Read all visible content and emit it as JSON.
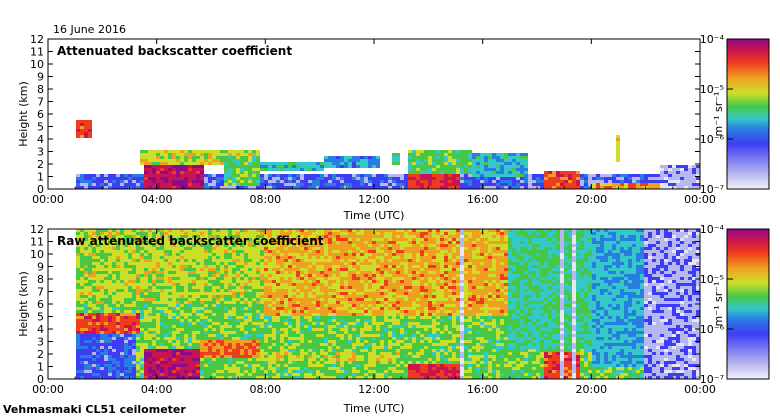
{
  "date_label": "16 June 2016",
  "footer": "Vehmasmaki CL51 ceilometer",
  "colors": {
    "scale": [
      "#e6e6f5",
      "#b8b8f0",
      "#3d3df5",
      "#2a7de0",
      "#35c8c8",
      "#46c846",
      "#cdde2a",
      "#f0a020",
      "#f03c1e",
      "#c81450",
      "#8c0a8c"
    ],
    "background": "#ffffff"
  },
  "chart_data": [
    {
      "type": "heatmap",
      "title": "Attenuated backscatter coefficient",
      "xlabel": "Time (UTC)",
      "ylabel": "Height (km)",
      "x_ticks": [
        "00:00",
        "04:00",
        "08:00",
        "12:00",
        "16:00",
        "20:00",
        "00:00"
      ],
      "y_ticks": [
        "0",
        "1",
        "2",
        "3",
        "4",
        "5",
        "6",
        "7",
        "8",
        "9",
        "10",
        "11",
        "12"
      ],
      "xlim": [
        0,
        24
      ],
      "ylim": [
        0,
        12
      ],
      "colorbar": {
        "unit": "m⁻¹ sr⁻¹",
        "ticks": [
          "10⁻⁷",
          "10⁻⁶",
          "10⁻⁵",
          "10⁻⁴"
        ],
        "log_scale": true
      },
      "data_start_hour": 1.0,
      "features": [
        {
          "t0": 1.0,
          "t1": 24.0,
          "h0": 0.0,
          "h1": 1.2,
          "level": 2.0
        },
        {
          "t0": 1.05,
          "t1": 1.6,
          "h0": 4.0,
          "h1": 5.5,
          "level": 8.0
        },
        {
          "t0": 3.6,
          "t1": 5.7,
          "h0": 0.0,
          "h1": 2.3,
          "level": 9.2
        },
        {
          "t0": 3.4,
          "t1": 7.8,
          "h0": 2.0,
          "h1": 3.2,
          "level": 6.0
        },
        {
          "t0": 6.5,
          "t1": 7.8,
          "h0": 0.3,
          "h1": 2.6,
          "level": 5.0
        },
        {
          "t0": 7.8,
          "t1": 10.2,
          "h0": 1.4,
          "h1": 2.2,
          "level": 4.0
        },
        {
          "t0": 10.2,
          "t1": 12.2,
          "h0": 1.6,
          "h1": 2.6,
          "level": 3.2
        },
        {
          "t0": 12.6,
          "t1": 13.0,
          "h0": 2.0,
          "h1": 2.8,
          "level": 4.5
        },
        {
          "t0": 13.2,
          "t1": 15.2,
          "h0": 0.0,
          "h1": 1.2,
          "level": 8.5
        },
        {
          "t0": 13.3,
          "t1": 15.6,
          "h0": 1.2,
          "h1": 3.0,
          "level": 5.0
        },
        {
          "t0": 15.6,
          "t1": 17.6,
          "h0": 1.0,
          "h1": 2.8,
          "level": 3.8
        },
        {
          "t0": 18.2,
          "t1": 19.6,
          "h0": 0.0,
          "h1": 1.4,
          "level": 8.0
        },
        {
          "t0": 20.9,
          "t1": 21.1,
          "h0": 2.2,
          "h1": 4.3,
          "level": 6.5
        },
        {
          "t0": 20.0,
          "t1": 22.5,
          "h0": 0.0,
          "h1": 0.6,
          "level": 7.0
        },
        {
          "t0": 22.5,
          "t1": 24.0,
          "h0": 0.0,
          "h1": 2.0,
          "level": 1.0
        }
      ]
    },
    {
      "type": "heatmap",
      "title": "Raw attenuated backscatter coefficient",
      "xlabel": "Time (UTC)",
      "ylabel": "Height (km)",
      "x_ticks": [
        "00:00",
        "04:00",
        "08:00",
        "12:00",
        "16:00",
        "20:00",
        "00:00"
      ],
      "y_ticks": [
        "0",
        "1",
        "2",
        "3",
        "4",
        "5",
        "6",
        "7",
        "8",
        "9",
        "10",
        "11",
        "12"
      ],
      "xlim": [
        0,
        24
      ],
      "ylim": [
        0,
        12
      ],
      "colorbar": {
        "unit": "m⁻¹ sr⁻¹",
        "ticks": [
          "10⁻⁷",
          "10⁻⁶",
          "10⁻⁵",
          "10⁻⁴"
        ],
        "log_scale": true
      },
      "data_start_hour": 1.0,
      "features": [
        {
          "t0": 1.0,
          "t1": 22.0,
          "h0": 0.0,
          "h1": 12.0,
          "level": 5.2
        },
        {
          "t0": 8.0,
          "t1": 17.0,
          "h0": 5.0,
          "h1": 12.0,
          "level": 6.8
        },
        {
          "t0": 1.0,
          "t1": 8.0,
          "h0": 6.0,
          "h1": 12.0,
          "level": 5.8
        },
        {
          "t0": 17.0,
          "t1": 20.0,
          "h0": 2.5,
          "h1": 12.0,
          "level": 4.5
        },
        {
          "t0": 20.0,
          "t1": 22.0,
          "h0": 1.0,
          "h1": 12.0,
          "level": 3.6
        },
        {
          "t0": 22.0,
          "t1": 24.0,
          "h0": 0.0,
          "h1": 12.0,
          "level": 1.2
        },
        {
          "t0": 1.0,
          "t1": 3.2,
          "h0": 0.0,
          "h1": 3.5,
          "level": 2.2
        },
        {
          "t0": 1.0,
          "t1": 3.4,
          "h0": 3.5,
          "h1": 5.2,
          "level": 8.0
        },
        {
          "t0": 3.6,
          "t1": 5.6,
          "h0": 0.0,
          "h1": 2.3,
          "level": 9.2
        },
        {
          "t0": 5.6,
          "t1": 7.8,
          "h0": 1.8,
          "h1": 3.0,
          "level": 7.5
        },
        {
          "t0": 7.8,
          "t1": 13.0,
          "h0": 1.5,
          "h1": 2.2,
          "level": 6.0
        },
        {
          "t0": 13.2,
          "t1": 15.2,
          "h0": 0.0,
          "h1": 1.2,
          "level": 8.5
        },
        {
          "t0": 15.1,
          "t1": 15.3,
          "h0": 0.0,
          "h1": 12.0,
          "level": 0.5
        },
        {
          "t0": 18.2,
          "t1": 19.6,
          "h0": 0.0,
          "h1": 2.2,
          "level": 8.0
        },
        {
          "t0": 18.9,
          "t1": 19.0,
          "h0": 0.0,
          "h1": 12.0,
          "level": 0.5
        },
        {
          "t0": 19.3,
          "t1": 19.4,
          "h0": 0.0,
          "h1": 12.0,
          "level": 0.5
        }
      ]
    }
  ]
}
